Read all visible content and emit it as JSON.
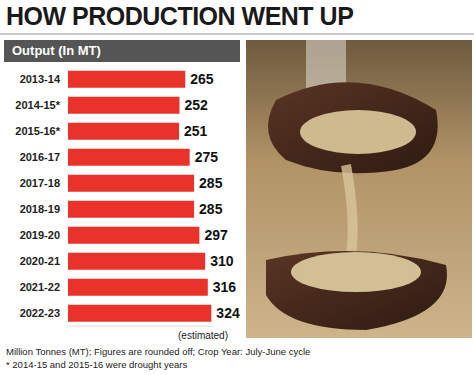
{
  "chart_data": {
    "type": "bar",
    "orientation": "horizontal",
    "title": "HOW PRODUCTION WENT UP",
    "subtitle": "Output (In MT)",
    "categories": [
      "2013-14",
      "2014-15*",
      "2015-16*",
      "2016-17",
      "2017-18",
      "2018-19",
      "2019-20",
      "2020-21",
      "2021-22",
      "2022-23"
    ],
    "values": [
      265,
      252,
      251,
      275,
      285,
      285,
      297,
      310,
      316,
      324
    ],
    "color": "#e8322a",
    "xlim": [
      0,
      330
    ],
    "data_labels": true,
    "tick_labels": "y",
    "grid": false,
    "annotations": [
      "(estimated)"
    ],
    "footnotes": [
      "Million Tonnes (MT); Figures are rounded off; Crop Year: July-June cycle",
      "* 2014-15 and 2015-16 were drought years"
    ]
  }
}
